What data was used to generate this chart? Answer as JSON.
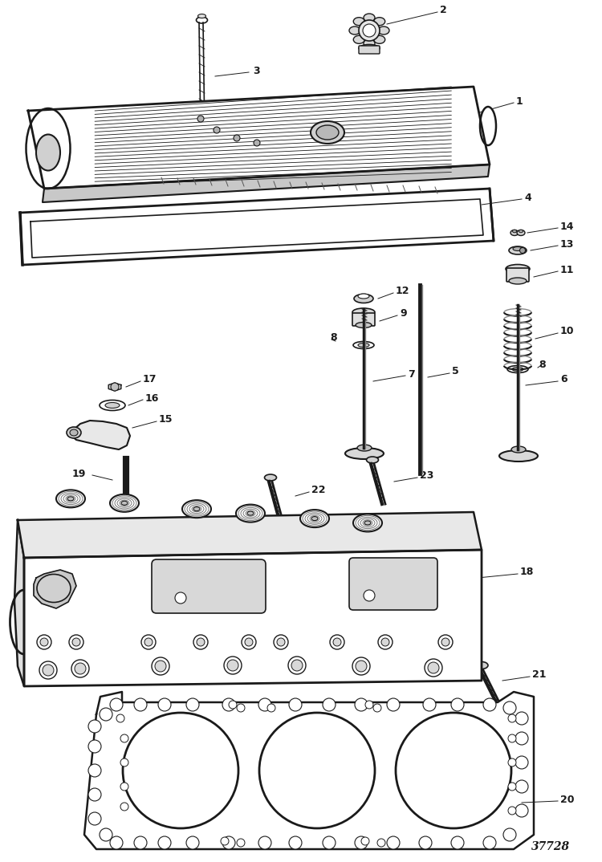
{
  "bg_color": "#ffffff",
  "line_color": "#1a1a1a",
  "watermark": "37728",
  "fig_width": 7.5,
  "fig_height": 10.74,
  "dpi": 100
}
